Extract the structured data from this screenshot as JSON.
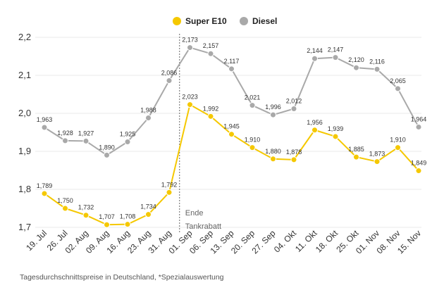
{
  "chart_data": {
    "type": "line",
    "title": "",
    "xlabel": "",
    "ylabel": "",
    "ylim": [
      1.7,
      2.2
    ],
    "yticks": [
      "1,7",
      "1,8",
      "1,9",
      "2,0",
      "2,1",
      "2,2"
    ],
    "ytick_values": [
      1.7,
      1.8,
      1.9,
      2.0,
      2.1,
      2.2
    ],
    "grid": true,
    "legend_placement": "top-center",
    "categories": [
      "19. Jul",
      "26. Jul",
      "02. Aug",
      "09. Aug",
      "16. Aug",
      "23. Aug",
      "31. Aug",
      "01. Sep",
      "06. Sep",
      "13. Sep",
      "20. Sep",
      "27. Sep",
      "04. Okt",
      "11. Okt",
      "18. Okt",
      "25. Okt",
      "01. Nov",
      "08. Nov",
      "15. Nov"
    ],
    "series": [
      {
        "name": "Super E10",
        "color": "#f5c800",
        "values": [
          1.789,
          1.75,
          1.732,
          1.707,
          1.708,
          1.734,
          1.792,
          2.023,
          1.992,
          1.945,
          1.91,
          1.88,
          1.878,
          1.956,
          1.939,
          1.885,
          1.873,
          1.91,
          1.849
        ],
        "labels": [
          "1,789",
          "1,750",
          "1,732",
          "1,707",
          "1,708",
          "1,734",
          "1,792",
          "2,023",
          "1,992",
          "1,945",
          "1,910",
          "1,880",
          "1,878",
          "1,956",
          "1,939",
          "1,885",
          "1,873",
          "1,910",
          "1,849"
        ]
      },
      {
        "name": "Diesel",
        "color": "#a9a9a9",
        "values": [
          1.963,
          1.928,
          1.927,
          1.89,
          1.925,
          1.988,
          2.086,
          2.173,
          2.157,
          2.117,
          2.021,
          1.996,
          2.012,
          2.144,
          2.147,
          2.12,
          2.116,
          2.065,
          1.964
        ],
        "labels": [
          "1,963",
          "1,928",
          "1,927",
          "1,890",
          "1,925",
          "1,988",
          "2,086",
          "2,173",
          "2,157",
          "2,117",
          "2,021",
          "1,996",
          "2,012",
          "2,144",
          "2,147",
          "2,120",
          "2,116",
          "2,065",
          "1,964"
        ]
      }
    ],
    "annotation": {
      "text_line1": "Ende",
      "text_line2": "Tankrabatt",
      "after_category": "31. Aug"
    },
    "footnote": "Tagesdurchschnittspreise in Deutschland, *Spezialauswertung"
  }
}
